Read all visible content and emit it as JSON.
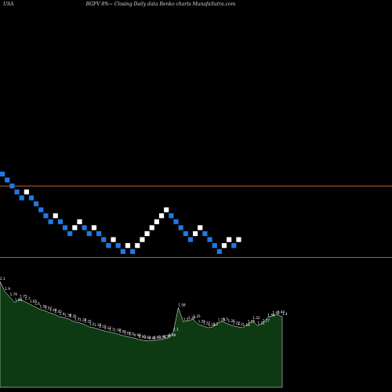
{
  "header": {
    "left": "USA",
    "center": "BGFV 8%~ Closing Daily data  Renko  charts MunafaSutra.com",
    "right": "Renko charts MunafaSutra.com"
  },
  "colors": {
    "background": "#000000",
    "up_brick": "#ffffff",
    "down_brick": "#1e78e6",
    "level_line": "#b8652c",
    "volume_fill": "#0d3a12",
    "volume_stroke": "#ffffff"
  },
  "chart_data": {
    "type": "renko",
    "reference_levels": [
      1.58,
      1.46
    ],
    "bricks": [
      {
        "dir": "down",
        "close": 1.6
      },
      {
        "dir": "down",
        "close": 1.59
      },
      {
        "dir": "down",
        "close": 1.58
      },
      {
        "dir": "down",
        "close": 1.57
      },
      {
        "dir": "down",
        "close": 1.56
      },
      {
        "dir": "up",
        "close": 1.57
      },
      {
        "dir": "down",
        "close": 1.56
      },
      {
        "dir": "down",
        "close": 1.55
      },
      {
        "dir": "down",
        "close": 1.54
      },
      {
        "dir": "down",
        "close": 1.53
      },
      {
        "dir": "down",
        "close": 1.52
      },
      {
        "dir": "up",
        "close": 1.53
      },
      {
        "dir": "down",
        "close": 1.52
      },
      {
        "dir": "down",
        "close": 1.51
      },
      {
        "dir": "down",
        "close": 1.5
      },
      {
        "dir": "up",
        "close": 1.51
      },
      {
        "dir": "up",
        "close": 1.52
      },
      {
        "dir": "down",
        "close": 1.51
      },
      {
        "dir": "down",
        "close": 1.5
      },
      {
        "dir": "up",
        "close": 1.51
      },
      {
        "dir": "down",
        "close": 1.5
      },
      {
        "dir": "down",
        "close": 1.49
      },
      {
        "dir": "down",
        "close": 1.48
      },
      {
        "dir": "up",
        "close": 1.49
      },
      {
        "dir": "down",
        "close": 1.48
      },
      {
        "dir": "down",
        "close": 1.47
      },
      {
        "dir": "up",
        "close": 1.48
      },
      {
        "dir": "down",
        "close": 1.47
      },
      {
        "dir": "up",
        "close": 1.48
      },
      {
        "dir": "up",
        "close": 1.49
      },
      {
        "dir": "up",
        "close": 1.5
      },
      {
        "dir": "up",
        "close": 1.51
      },
      {
        "dir": "up",
        "close": 1.52
      },
      {
        "dir": "up",
        "close": 1.53
      },
      {
        "dir": "up",
        "close": 1.54
      },
      {
        "dir": "down",
        "close": 1.53
      },
      {
        "dir": "down",
        "close": 1.52
      },
      {
        "dir": "down",
        "close": 1.51
      },
      {
        "dir": "down",
        "close": 1.5
      },
      {
        "dir": "down",
        "close": 1.49
      },
      {
        "dir": "up",
        "close": 1.5
      },
      {
        "dir": "up",
        "close": 1.51
      },
      {
        "dir": "down",
        "close": 1.5
      },
      {
        "dir": "down",
        "close": 1.49
      },
      {
        "dir": "down",
        "close": 1.48
      },
      {
        "dir": "down",
        "close": 1.47
      },
      {
        "dir": "up",
        "close": 1.48
      },
      {
        "dir": "up",
        "close": 1.49
      },
      {
        "dir": "down",
        "close": 1.48
      },
      {
        "dir": "up",
        "close": 1.49
      }
    ],
    "volume_labels": [
      "2.1",
      "1.9",
      "1.79",
      "1.68",
      "1.75",
      "1.7",
      "1.65",
      "1.6",
      "1.55",
      "1.52",
      "1.48",
      "1.45",
      "1.4",
      "1.38",
      "1.35",
      "1.3",
      "1.28",
      "1.25",
      "1.2",
      "1.18",
      "1.15",
      "1.12",
      "1.1",
      "1.08",
      "1.05",
      "1.02",
      "1.0",
      "0.98",
      "0.95",
      "0.93",
      "0.92",
      "0.93",
      "0.94",
      "0.96",
      "0.98",
      "1.1",
      "1.58",
      "1.3",
      "1.32",
      "1.35",
      "1.25",
      "1.22",
      "1.18",
      "1.2",
      "1.28",
      "1.3",
      "1.26",
      "1.22",
      "1.2",
      "1.18",
      "1.25",
      "1.32",
      "1.22",
      "1.27",
      "1.38",
      "1.42",
      "1.44",
      "1.4"
    ],
    "volume_values": [
      2.1,
      1.9,
      1.79,
      1.68,
      1.75,
      1.7,
      1.65,
      1.6,
      1.55,
      1.52,
      1.48,
      1.45,
      1.4,
      1.38,
      1.35,
      1.3,
      1.28,
      1.25,
      1.2,
      1.18,
      1.15,
      1.12,
      1.1,
      1.08,
      1.05,
      1.02,
      1.0,
      0.98,
      0.95,
      0.93,
      0.92,
      0.93,
      0.94,
      0.96,
      0.98,
      1.1,
      1.58,
      1.3,
      1.32,
      1.35,
      1.25,
      1.22,
      1.18,
      1.2,
      1.28,
      1.3,
      1.26,
      1.22,
      1.2,
      1.18,
      1.25,
      1.32,
      1.22,
      1.27,
      1.38,
      1.42,
      1.44,
      1.4
    ]
  }
}
